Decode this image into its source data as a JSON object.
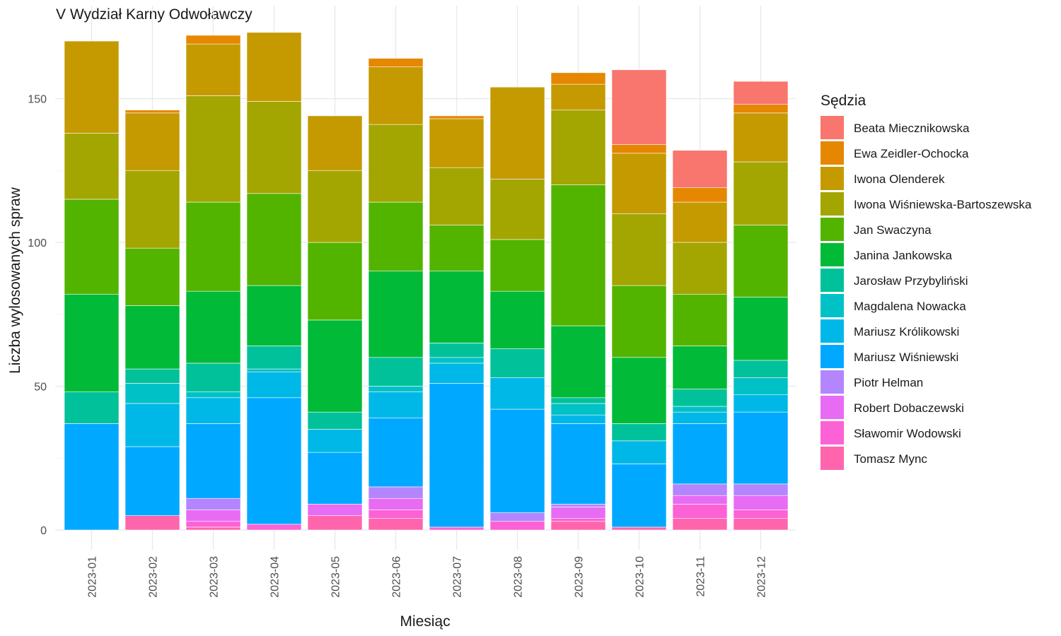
{
  "chart_data": {
    "type": "bar",
    "stacked": true,
    "title": "V Wydział Karny Odwoławczy",
    "xlabel": "Miesiąc",
    "ylabel": "Liczba wylosowanych spraw",
    "ylim": [
      0,
      175
    ],
    "yticks": [
      0,
      50,
      100,
      150
    ],
    "grid": true,
    "legend_position": "right",
    "legend_title": "Sędzia",
    "categories": [
      "2023-01",
      "2023-02",
      "2023-03",
      "2023-04",
      "2023-05",
      "2023-06",
      "2023-07",
      "2023-08",
      "2023-09",
      "2023-10",
      "2023-11",
      "2023-12"
    ],
    "series": [
      {
        "name": "Tomasz Mync",
        "color": "#FF65AC",
        "values": [
          0,
          5,
          1,
          0,
          5,
          4,
          0,
          0,
          3,
          1,
          4,
          4
        ]
      },
      {
        "name": "Sławomir Wodowski",
        "color": "#FC61D5",
        "values": [
          0,
          0,
          2,
          2,
          0,
          3,
          1,
          3,
          1,
          0,
          5,
          3
        ]
      },
      {
        "name": "Robert Dobaczewski",
        "color": "#E76BF3",
        "values": [
          0,
          0,
          4,
          0,
          4,
          4,
          0,
          0,
          4,
          0,
          3,
          5
        ]
      },
      {
        "name": "Piotr Helman",
        "color": "#B385FF",
        "values": [
          0,
          0,
          4,
          0,
          0,
          4,
          0,
          3,
          1,
          0,
          4,
          4
        ]
      },
      {
        "name": "Mariusz Wiśniewski",
        "color": "#00A9FF",
        "values": [
          37,
          24,
          26,
          44,
          18,
          24,
          50,
          36,
          28,
          22,
          21,
          25
        ]
      },
      {
        "name": "Mariusz Królikowski",
        "color": "#00B8E7",
        "values": [
          0,
          15,
          9,
          9,
          8,
          9,
          7,
          11,
          3,
          8,
          4,
          6
        ]
      },
      {
        "name": "Magdalena Nowacka",
        "color": "#00C1C6",
        "values": [
          0,
          7,
          2,
          1,
          0,
          2,
          2,
          0,
          4,
          0,
          2,
          6
        ]
      },
      {
        "name": "Jarosław Przybyliński",
        "color": "#00C19A",
        "values": [
          11,
          5,
          10,
          8,
          6,
          10,
          5,
          10,
          2,
          6,
          6,
          6
        ]
      },
      {
        "name": "Janina Jankowska",
        "color": "#00BA38",
        "values": [
          34,
          22,
          25,
          21,
          32,
          30,
          25,
          20,
          25,
          23,
          15,
          22
        ]
      },
      {
        "name": "Jan Swaczyna",
        "color": "#53B400",
        "values": [
          33,
          20,
          31,
          32,
          27,
          24,
          16,
          18,
          49,
          25,
          18,
          25
        ]
      },
      {
        "name": "Iwona Wiśniewska-Bartoszewska",
        "color": "#A3A500",
        "values": [
          23,
          27,
          37,
          32,
          25,
          27,
          20,
          21,
          26,
          25,
          18,
          22
        ]
      },
      {
        "name": "Iwona Olenderek",
        "color": "#C49A00",
        "values": [
          32,
          20,
          18,
          24,
          19,
          20,
          17,
          32,
          9,
          21,
          14,
          17
        ]
      },
      {
        "name": "Ewa Zeidler-Ochocka",
        "color": "#E58700",
        "values": [
          0,
          1,
          3,
          0,
          0,
          3,
          1,
          0,
          4,
          3,
          5,
          3
        ]
      },
      {
        "name": "Beata Miecznikowska",
        "color": "#F8766D",
        "values": [
          0,
          0,
          0,
          0,
          0,
          0,
          0,
          0,
          0,
          26,
          13,
          8
        ]
      }
    ]
  }
}
